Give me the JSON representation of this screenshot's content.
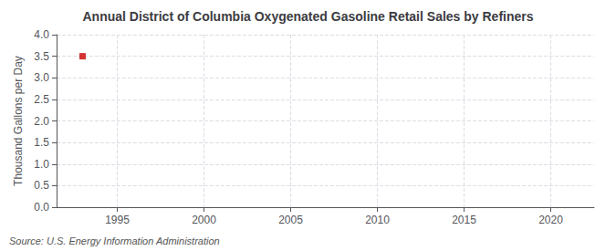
{
  "chart_data": {
    "type": "scatter",
    "title": "Annual District of Columbia Oxygenated Gasoline Retail Sales by Refiners",
    "ylabel": "Thousand Gallons per Day",
    "annotations": [
      "Source: U.S. Energy Information Administration"
    ],
    "x": [
      1993
    ],
    "values": [
      3.5
    ],
    "color": "#cc0000",
    "marker": "square",
    "xlim": [
      1991.5,
      2022.5
    ],
    "xticks": [
      1995,
      2000,
      2005,
      2010,
      2015,
      2020
    ],
    "ylim": [
      0.0,
      4.0
    ],
    "yticks": [
      {
        "value": 0,
        "label": "0.0"
      },
      0.5,
      {
        "value": 1,
        "label": "1.0"
      },
      1.5,
      {
        "value": 2,
        "label": "2.0"
      },
      2.5,
      {
        "value": 3,
        "label": "3.0"
      },
      3.5,
      {
        "value": 4,
        "label": "4.0"
      }
    ],
    "grid": true
  }
}
